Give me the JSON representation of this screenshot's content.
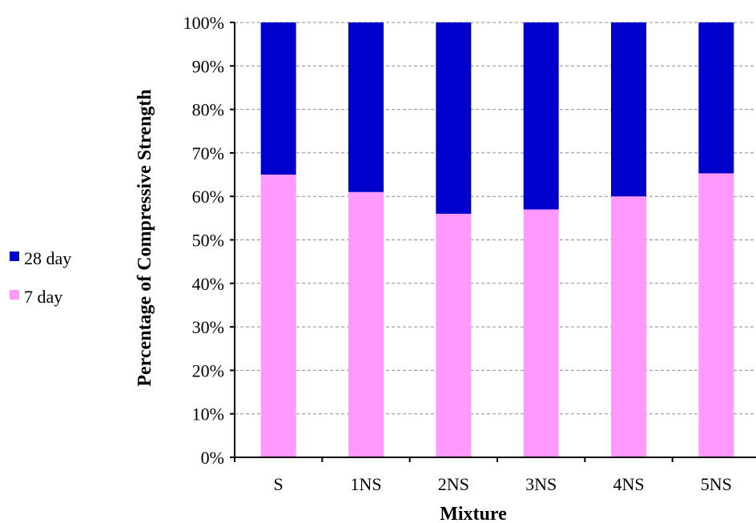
{
  "chart_data": {
    "type": "bar",
    "stacked": true,
    "normalized_percent": true,
    "categories": [
      "S",
      "1NS",
      "2NS",
      "3NS",
      "4NS",
      "5NS"
    ],
    "series": [
      {
        "name": "7 day",
        "values": [
          65,
          61,
          56,
          57,
          60,
          65.3
        ],
        "color": "#ff99ff"
      },
      {
        "name": "28 day",
        "values": [
          35,
          39,
          44,
          43,
          40,
          34.7
        ],
        "color": "#0000cc"
      }
    ],
    "xlabel": "Mixture",
    "ylabel": "Percentage of Compressive Strength",
    "ylim": [
      0,
      100
    ],
    "yticks": [
      "0%",
      "10%",
      "20%",
      "30%",
      "40%",
      "50%",
      "60%",
      "70%",
      "80%",
      "90%",
      "100%"
    ],
    "grid": true,
    "legend_position": "left",
    "legend_order": [
      "28 day",
      "7 day"
    ]
  }
}
